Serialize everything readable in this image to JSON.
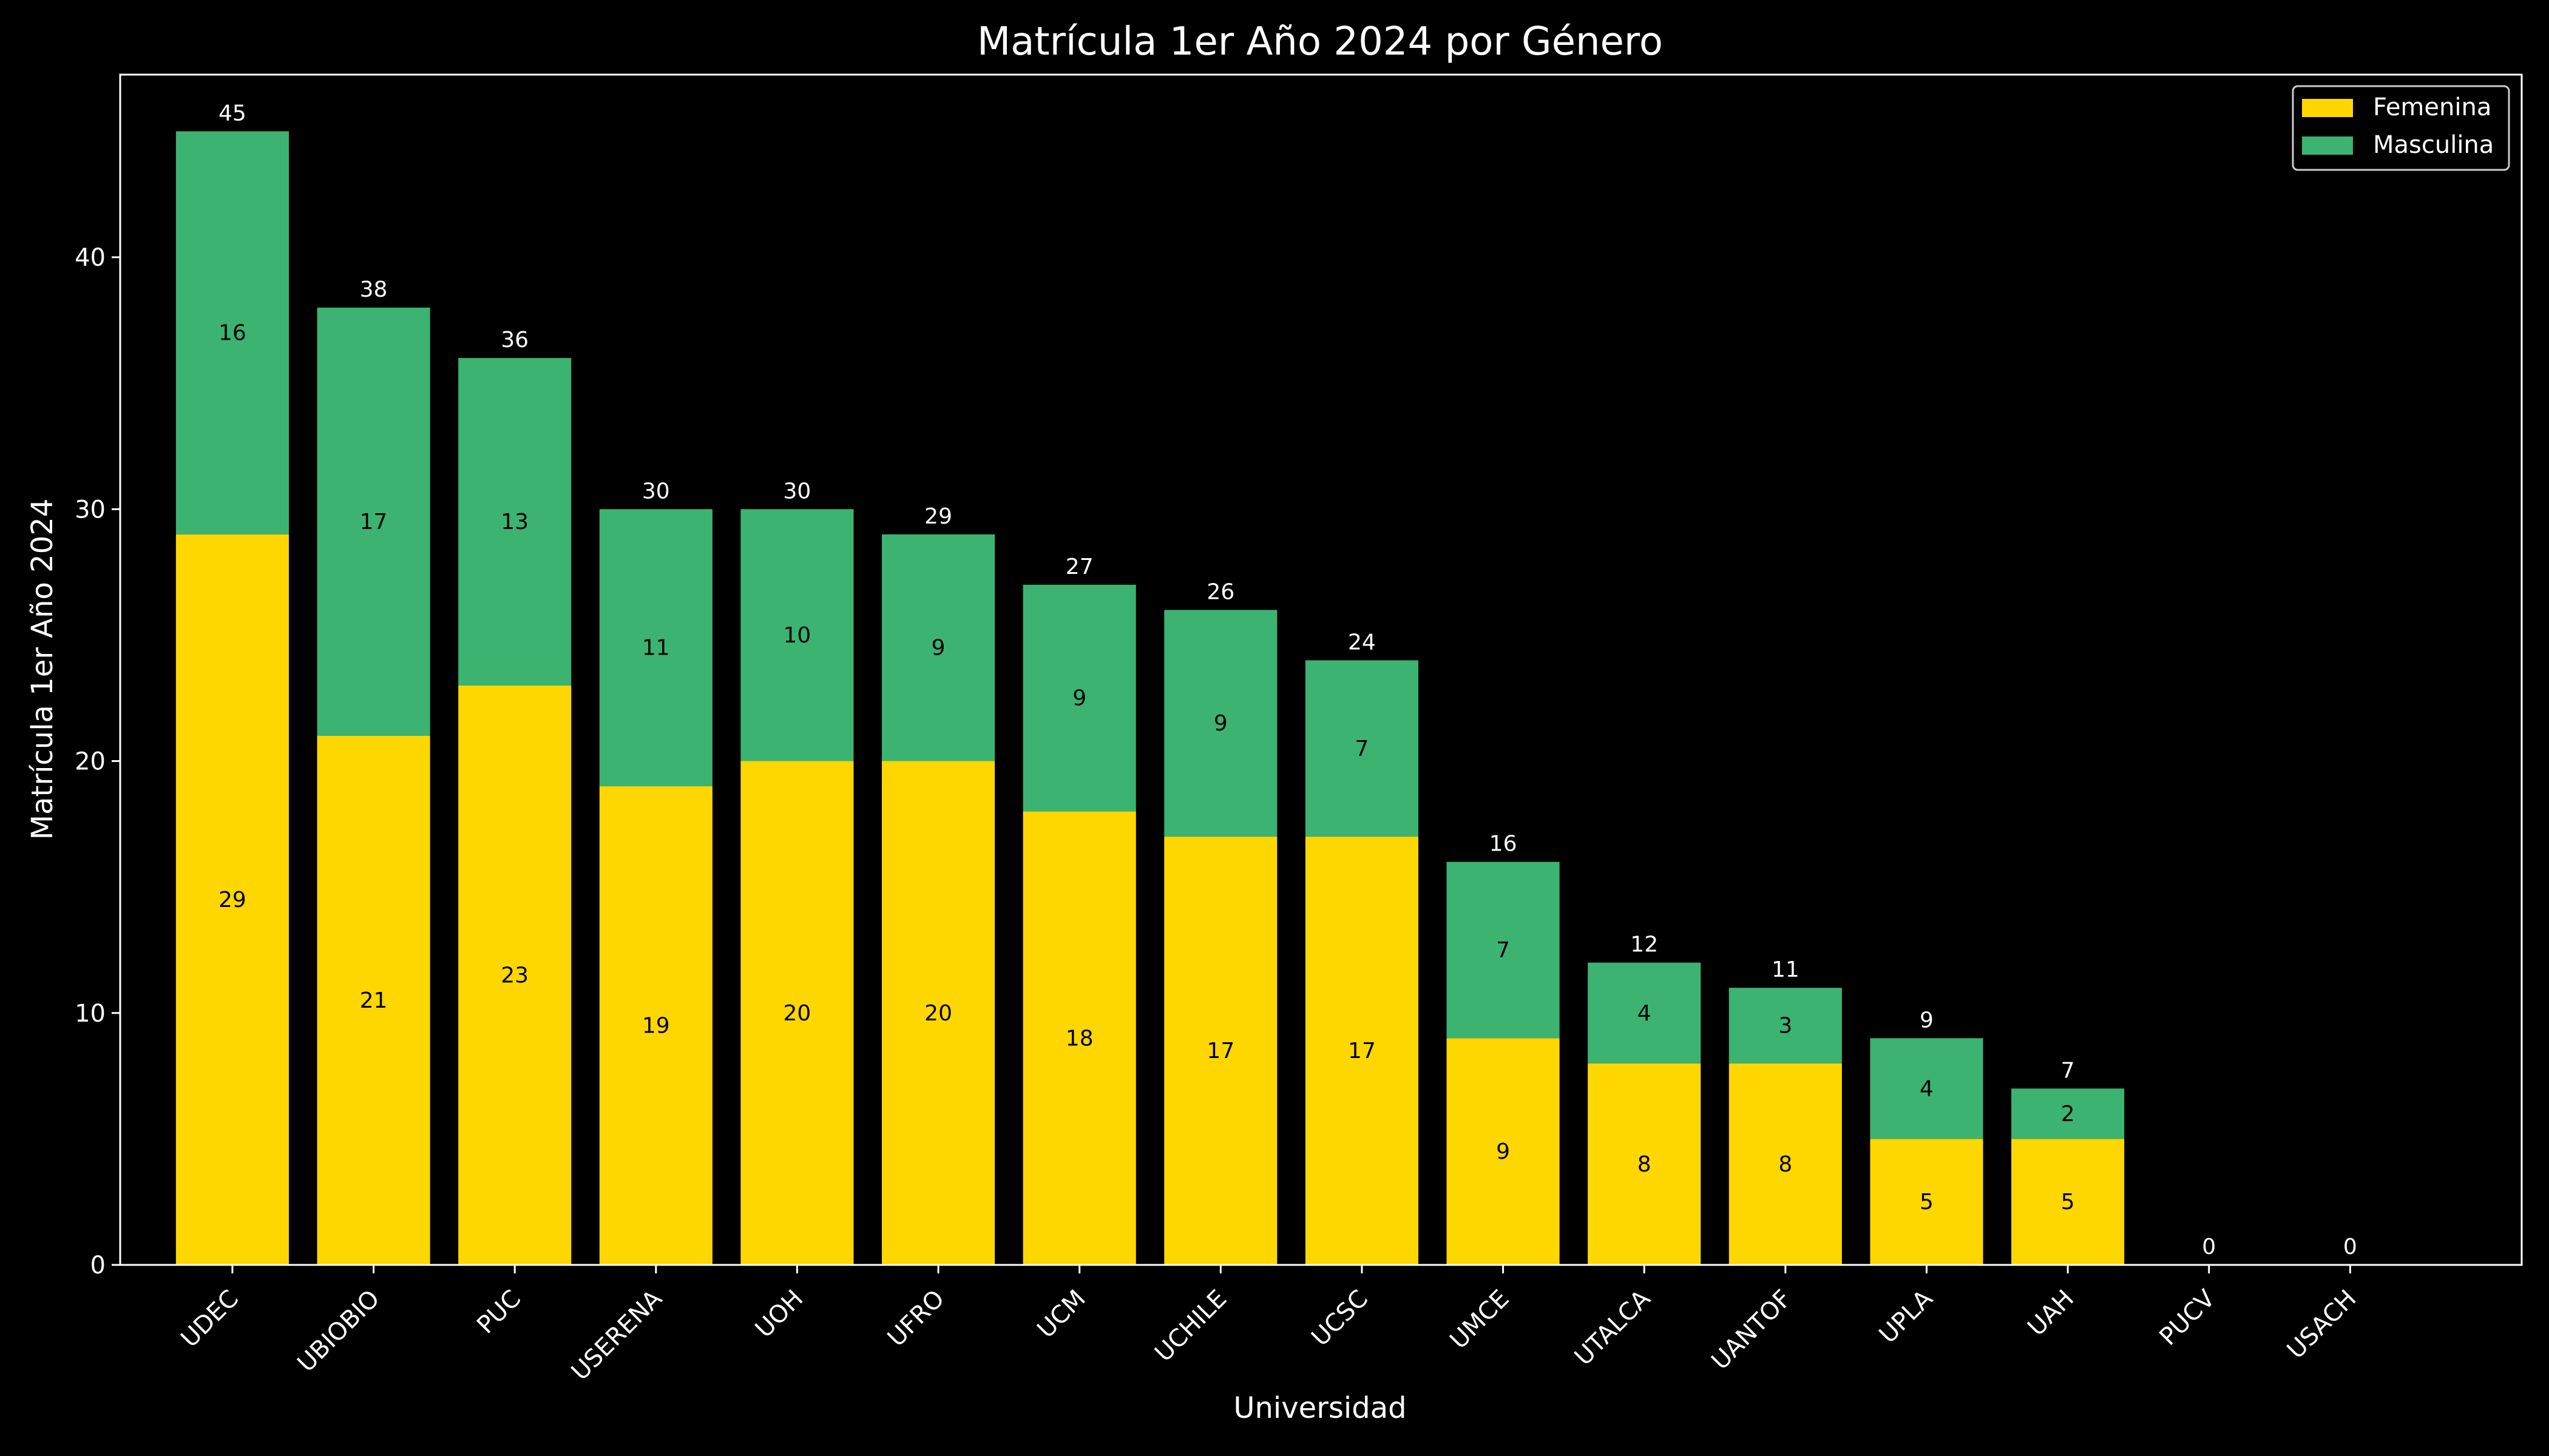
{
  "colors": {
    "background": "#000000",
    "foreground": "#ffffff",
    "femenina": "#FFD700",
    "masculina": "#3CB371",
    "segment_label": "#000000"
  },
  "chart_data": {
    "type": "bar",
    "stacked": true,
    "title": "Matrícula 1er Año 2024 por Género",
    "xlabel": "Universidad",
    "ylabel": "Matrícula 1er Año 2024",
    "ylim": [
      0,
      47.25
    ],
    "yticks": [
      0,
      10,
      20,
      30,
      40
    ],
    "grid": false,
    "legend_position": "top-right",
    "categories": [
      "UDEC",
      "UBIOBIO",
      "PUC",
      "USERENA",
      "UOH",
      "UFRO",
      "UCM",
      "UCHILE",
      "UCSC",
      "UMCE",
      "UTALCA",
      "UANTOF",
      "UPLA",
      "UAH",
      "PUCV",
      "USACH"
    ],
    "series": [
      {
        "name": "Femenina",
        "color": "#FFD700",
        "values": [
          29,
          21,
          23,
          19,
          20,
          20,
          18,
          17,
          17,
          9,
          8,
          8,
          5,
          5,
          0,
          0
        ]
      },
      {
        "name": "Masculina",
        "color": "#3CB371",
        "values": [
          16,
          17,
          13,
          11,
          10,
          9,
          9,
          9,
          7,
          7,
          4,
          3,
          4,
          2,
          0,
          0
        ]
      }
    ],
    "totals": [
      45,
      38,
      36,
      30,
      30,
      29,
      27,
      26,
      24,
      16,
      12,
      11,
      9,
      7,
      0,
      0
    ]
  }
}
